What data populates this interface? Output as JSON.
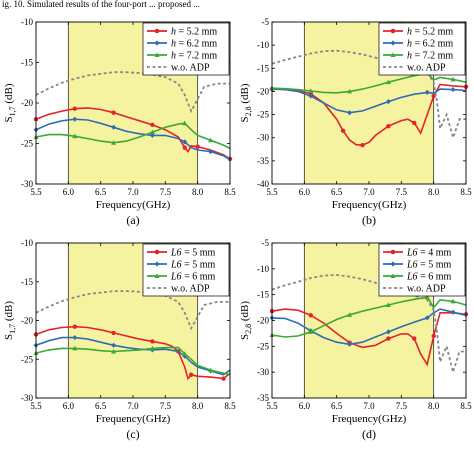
{
  "top_caption": "ig. 10. Simulated results of the four-port ... proposed ...",
  "chart_data": [
    {
      "type": "line",
      "panel_label": "(a)",
      "xlabel": "Frequency(GHz)",
      "ylabel_main": "S",
      "ylabel_sub": "1,7",
      "ylabel_unit": " (dB)",
      "xlim": [
        5.5,
        8.5
      ],
      "ylim": [
        -30,
        -10
      ],
      "xticks": [
        "5.5",
        "6.0",
        "6.5",
        "7.0",
        "7.5",
        "8.0",
        "8.5"
      ],
      "yticks": [
        "-30",
        "-25",
        "-20",
        "-15",
        "-10"
      ],
      "highlight_band": [
        6.0,
        8.0
      ],
      "legend_position": "top-right",
      "series": [
        {
          "name_prefix": "h",
          "name": " = 5.2 mm",
          "color": "#e3242b",
          "marker": "circle",
          "dashed": false,
          "x": [
            5.5,
            5.7,
            5.9,
            6.1,
            6.3,
            6.5,
            6.7,
            6.9,
            7.1,
            7.3,
            7.5,
            7.7,
            7.8,
            7.85,
            7.9,
            8.0,
            8.2,
            8.4,
            8.5
          ],
          "y": [
            -22,
            -21.4,
            -21,
            -20.7,
            -20.6,
            -20.8,
            -21.2,
            -21.7,
            -22.2,
            -22.7,
            -23.3,
            -24.2,
            -25.5,
            -26.0,
            -25.3,
            -25.4,
            -25.8,
            -26.4,
            -26.9
          ]
        },
        {
          "name_prefix": "h",
          "name": " = 6.2 mm",
          "color": "#2e6db4",
          "marker": "diamond",
          "dashed": false,
          "x": [
            5.5,
            5.7,
            5.9,
            6.1,
            6.3,
            6.5,
            6.7,
            6.9,
            7.1,
            7.3,
            7.5,
            7.7,
            7.8,
            7.9,
            8.0,
            8.2,
            8.4,
            8.5
          ],
          "y": [
            -23.3,
            -22.6,
            -22.2,
            -22.0,
            -22.1,
            -22.5,
            -23.0,
            -23.5,
            -23.8,
            -24.0,
            -24.0,
            -24.4,
            -24.8,
            -25.5,
            -25.8,
            -26.0,
            -26.5,
            -27.0
          ]
        },
        {
          "name_prefix": "h",
          "name": " = 7.2 mm",
          "color": "#3aa935",
          "marker": "triangle",
          "dashed": false,
          "x": [
            5.5,
            5.7,
            5.9,
            6.1,
            6.3,
            6.5,
            6.7,
            6.9,
            7.1,
            7.3,
            7.5,
            7.7,
            7.8,
            7.9,
            8.0,
            8.2,
            8.4,
            8.5
          ],
          "y": [
            -24.2,
            -23.9,
            -23.9,
            -24.1,
            -24.4,
            -24.7,
            -24.9,
            -24.7,
            -24.2,
            -23.6,
            -23.0,
            -22.6,
            -22.5,
            -23.3,
            -24.0,
            -24.6,
            -25.2,
            -25.6
          ]
        },
        {
          "name_prefix": "",
          "name": "w.o. ADP",
          "color": "#888888",
          "marker": "none",
          "dashed": true,
          "x": [
            5.5,
            5.7,
            5.9,
            6.1,
            6.3,
            6.5,
            6.7,
            6.9,
            7.1,
            7.3,
            7.5,
            7.7,
            7.8,
            7.9,
            8.0,
            8.1,
            8.3,
            8.5
          ],
          "y": [
            -19,
            -18.2,
            -17.5,
            -17.0,
            -16.6,
            -16.4,
            -16.2,
            -16.2,
            -16.3,
            -16.5,
            -16.8,
            -17.6,
            -19.0,
            -21.0,
            -19.5,
            -18.0,
            -17.6,
            -17.6
          ]
        }
      ]
    },
    {
      "type": "line",
      "panel_label": "(b)",
      "xlabel": "Frequency(GHz)",
      "ylabel_main": "S",
      "ylabel_sub": "2,8",
      "ylabel_unit": " (dB)",
      "xlim": [
        5.5,
        8.5
      ],
      "ylim": [
        -40,
        -5
      ],
      "xticks": [
        "5.5",
        "6.0",
        "6.5",
        "7.0",
        "7.5",
        "8.0",
        "8.5"
      ],
      "yticks": [
        "-40",
        "-35",
        "-30",
        "-25",
        "-20",
        "-15",
        "-10",
        "-5"
      ],
      "highlight_band": [
        6.0,
        8.0
      ],
      "legend_position": "top-right",
      "series": [
        {
          "name_prefix": "h",
          "name": " = 5.2 mm",
          "color": "#e3242b",
          "marker": "circle",
          "dashed": false,
          "x": [
            5.5,
            5.7,
            5.9,
            6.1,
            6.3,
            6.5,
            6.6,
            6.7,
            6.8,
            6.9,
            7.0,
            7.1,
            7.3,
            7.5,
            7.6,
            7.7,
            7.8,
            7.9,
            8.0,
            8.1,
            8.3,
            8.5
          ],
          "y": [
            -19.5,
            -19.6,
            -19.8,
            -20.5,
            -22.5,
            -26,
            -28.5,
            -30.5,
            -31.5,
            -31.6,
            -31.0,
            -29.5,
            -27.5,
            -26.3,
            -26.0,
            -26.8,
            -29,
            -25,
            -21,
            -18.5,
            -18.8,
            -19.0
          ]
        },
        {
          "name_prefix": "h",
          "name": " = 6.2 mm",
          "color": "#2e6db4",
          "marker": "diamond",
          "dashed": false,
          "x": [
            5.5,
            5.7,
            5.9,
            6.1,
            6.3,
            6.5,
            6.7,
            6.9,
            7.1,
            7.3,
            7.5,
            7.7,
            7.9,
            8.0,
            8.1,
            8.3,
            8.5
          ],
          "y": [
            -19.4,
            -19.6,
            -20.0,
            -21.0,
            -22.5,
            -24.0,
            -24.6,
            -24.2,
            -23.2,
            -22.2,
            -21.3,
            -20.6,
            -20.2,
            -20.4,
            -19.5,
            -19.6,
            -19.8
          ]
        },
        {
          "name_prefix": "h",
          "name": " = 7.2 mm",
          "color": "#3aa935",
          "marker": "triangle",
          "dashed": false,
          "x": [
            5.5,
            5.7,
            5.9,
            6.1,
            6.3,
            6.5,
            6.7,
            6.9,
            7.1,
            7.3,
            7.5,
            7.7,
            7.9,
            8.0,
            8.1,
            8.3,
            8.5
          ],
          "y": [
            -19.3,
            -19.4,
            -19.6,
            -19.9,
            -20.2,
            -20.3,
            -20.0,
            -19.5,
            -18.8,
            -18.0,
            -17.3,
            -16.6,
            -16.0,
            -17.5,
            -17.0,
            -17.4,
            -18.0
          ]
        },
        {
          "name_prefix": "",
          "name": "w.o. ADP",
          "color": "#888888",
          "marker": "none",
          "dashed": true,
          "x": [
            5.5,
            5.7,
            5.9,
            6.1,
            6.3,
            6.5,
            6.7,
            6.9,
            7.1,
            7.3,
            7.5,
            7.7,
            7.9,
            8.0,
            8.05,
            8.1,
            8.2,
            8.3,
            8.4,
            8.5
          ],
          "y": [
            -14,
            -13.2,
            -12.5,
            -11.8,
            -11.3,
            -11.2,
            -11.5,
            -12.0,
            -12.7,
            -13.5,
            -14.3,
            -15.2,
            -16.0,
            -18,
            -22,
            -28,
            -25,
            -30,
            -26,
            -26
          ]
        }
      ]
    },
    {
      "type": "line",
      "panel_label": "(c)",
      "xlabel": "Frequency(GHz)",
      "ylabel_main": "S",
      "ylabel_sub": "1,7",
      "ylabel_unit": " (dB)",
      "xlim": [
        5.5,
        8.5
      ],
      "ylim": [
        -30,
        -10
      ],
      "xticks": [
        "5.5",
        "6.0",
        "6.5",
        "7.0",
        "7.5",
        "8.0",
        "8.5"
      ],
      "yticks": [
        "-30",
        "-25",
        "-20",
        "-15",
        "-10"
      ],
      "highlight_band": [
        6.0,
        8.0
      ],
      "legend_position": "top-right",
      "series": [
        {
          "name_prefix": "L6",
          "name": " = 5 mm",
          "color": "#e3242b",
          "marker": "circle",
          "dashed": false,
          "x": [
            5.5,
            5.7,
            5.9,
            6.1,
            6.3,
            6.5,
            6.7,
            6.9,
            7.1,
            7.3,
            7.5,
            7.6,
            7.7,
            7.8,
            7.85,
            7.9,
            8.0,
            8.2,
            8.4,
            8.5
          ],
          "y": [
            -21.8,
            -21.2,
            -20.9,
            -20.8,
            -20.9,
            -21.2,
            -21.6,
            -22.0,
            -22.4,
            -22.7,
            -23.0,
            -23.3,
            -24.0,
            -26.0,
            -27.5,
            -27.0,
            -27.2,
            -27.3,
            -27.5,
            -26.8
          ]
        },
        {
          "name_prefix": "L6",
          "name": " = 5 mm",
          "color": "#2e6db4",
          "marker": "diamond",
          "dashed": false,
          "x": [
            5.5,
            5.7,
            5.9,
            6.1,
            6.3,
            6.5,
            6.7,
            6.9,
            7.1,
            7.3,
            7.5,
            7.7,
            7.8,
            7.9,
            8.0,
            8.2,
            8.4,
            8.5
          ],
          "y": [
            -23.2,
            -22.6,
            -22.2,
            -22.2,
            -22.4,
            -22.8,
            -23.2,
            -23.5,
            -23.7,
            -23.8,
            -23.7,
            -24.0,
            -24.6,
            -25.4,
            -26.0,
            -26.5,
            -27.0,
            -26.4
          ]
        },
        {
          "name_prefix": "L6",
          "name": " = 6 mm",
          "color": "#3aa935",
          "marker": "triangle",
          "dashed": false,
          "x": [
            5.5,
            5.7,
            5.9,
            6.1,
            6.3,
            6.5,
            6.7,
            6.9,
            7.1,
            7.3,
            7.5,
            7.7,
            7.8,
            7.9,
            8.0,
            8.2,
            8.4,
            8.5
          ],
          "y": [
            -24.2,
            -23.8,
            -23.6,
            -23.6,
            -23.7,
            -23.9,
            -24.0,
            -23.9,
            -23.8,
            -23.6,
            -23.5,
            -23.5,
            -24.3,
            -25.0,
            -25.8,
            -26.4,
            -26.8,
            -27.0
          ]
        },
        {
          "name_prefix": "",
          "name": "w.o. ADP",
          "color": "#888888",
          "marker": "none",
          "dashed": true,
          "x": [
            5.5,
            5.7,
            5.9,
            6.1,
            6.3,
            6.5,
            6.7,
            6.9,
            7.1,
            7.3,
            7.5,
            7.7,
            7.8,
            7.9,
            8.0,
            8.1,
            8.3,
            8.5
          ],
          "y": [
            -19,
            -18.2,
            -17.5,
            -17.0,
            -16.6,
            -16.4,
            -16.2,
            -16.2,
            -16.3,
            -16.5,
            -16.8,
            -17.6,
            -19.0,
            -21.0,
            -19.5,
            -18.0,
            -17.6,
            -17.6
          ]
        }
      ]
    },
    {
      "type": "line",
      "panel_label": "(d)",
      "xlabel": "Frequency(GHz)",
      "ylabel_main": "S",
      "ylabel_sub": "2,8",
      "ylabel_unit": " (dB)",
      "xlim": [
        5.5,
        8.5
      ],
      "ylim": [
        -35,
        -5
      ],
      "xticks": [
        "5.5",
        "6.0",
        "6.5",
        "7.0",
        "7.5",
        "8.0",
        "8.5"
      ],
      "yticks": [
        "-35",
        "-30",
        "-25",
        "-20",
        "-15",
        "-10",
        "-5"
      ],
      "highlight_band": [
        6.0,
        8.0
      ],
      "legend_position": "top-right",
      "series": [
        {
          "name_prefix": "L6",
          "name": " = 4 mm",
          "color": "#e3242b",
          "marker": "circle",
          "dashed": false,
          "x": [
            5.5,
            5.7,
            5.9,
            6.1,
            6.3,
            6.5,
            6.7,
            6.9,
            7.1,
            7.3,
            7.5,
            7.6,
            7.7,
            7.8,
            7.9,
            8.0,
            8.1,
            8.3,
            8.5
          ],
          "y": [
            -18.2,
            -17.8,
            -18.0,
            -19.0,
            -20.5,
            -22.5,
            -24.3,
            -25.2,
            -24.8,
            -23.5,
            -22.6,
            -22.6,
            -23.5,
            -26.5,
            -28.5,
            -23,
            -18.5,
            -18.5,
            -18.8
          ]
        },
        {
          "name_prefix": "L6",
          "name": " = 5 mm",
          "color": "#2e6db4",
          "marker": "diamond",
          "dashed": false,
          "x": [
            5.5,
            5.7,
            5.9,
            6.1,
            6.3,
            6.5,
            6.7,
            6.9,
            7.1,
            7.3,
            7.5,
            7.7,
            7.9,
            8.0,
            8.1,
            8.3,
            8.5
          ],
          "y": [
            -19.5,
            -19.6,
            -20.5,
            -22.0,
            -23.3,
            -24.2,
            -24.6,
            -24.2,
            -23.2,
            -22.2,
            -21.2,
            -20.3,
            -19.5,
            -18.5,
            -17.8,
            -18.4,
            -19.0
          ]
        },
        {
          "name_prefix": "L6",
          "name": " = 6 mm",
          "color": "#3aa935",
          "marker": "triangle",
          "dashed": false,
          "x": [
            5.5,
            5.7,
            5.9,
            6.1,
            6.3,
            6.5,
            6.7,
            6.9,
            7.1,
            7.3,
            7.5,
            7.7,
            7.9,
            8.0,
            8.1,
            8.3,
            8.5
          ],
          "y": [
            -22.8,
            -23.2,
            -23.0,
            -22.2,
            -21.0,
            -19.8,
            -18.9,
            -18.2,
            -17.6,
            -17.0,
            -16.4,
            -15.9,
            -15.5,
            -17.5,
            -16.0,
            -16.3,
            -17.0
          ]
        },
        {
          "name_prefix": "",
          "name": "w.o. ADP",
          "color": "#888888",
          "marker": "none",
          "dashed": true,
          "x": [
            5.5,
            5.7,
            5.9,
            6.1,
            6.3,
            6.5,
            6.7,
            6.9,
            7.1,
            7.3,
            7.5,
            7.7,
            7.9,
            8.0,
            8.05,
            8.1,
            8.2,
            8.3,
            8.4,
            8.5
          ],
          "y": [
            -14,
            -13.2,
            -12.5,
            -11.8,
            -11.3,
            -11.2,
            -11.5,
            -12.0,
            -12.7,
            -13.5,
            -14.3,
            -15.2,
            -16.0,
            -18,
            -22,
            -28,
            -25,
            -30,
            -26,
            -26
          ]
        }
      ]
    }
  ]
}
